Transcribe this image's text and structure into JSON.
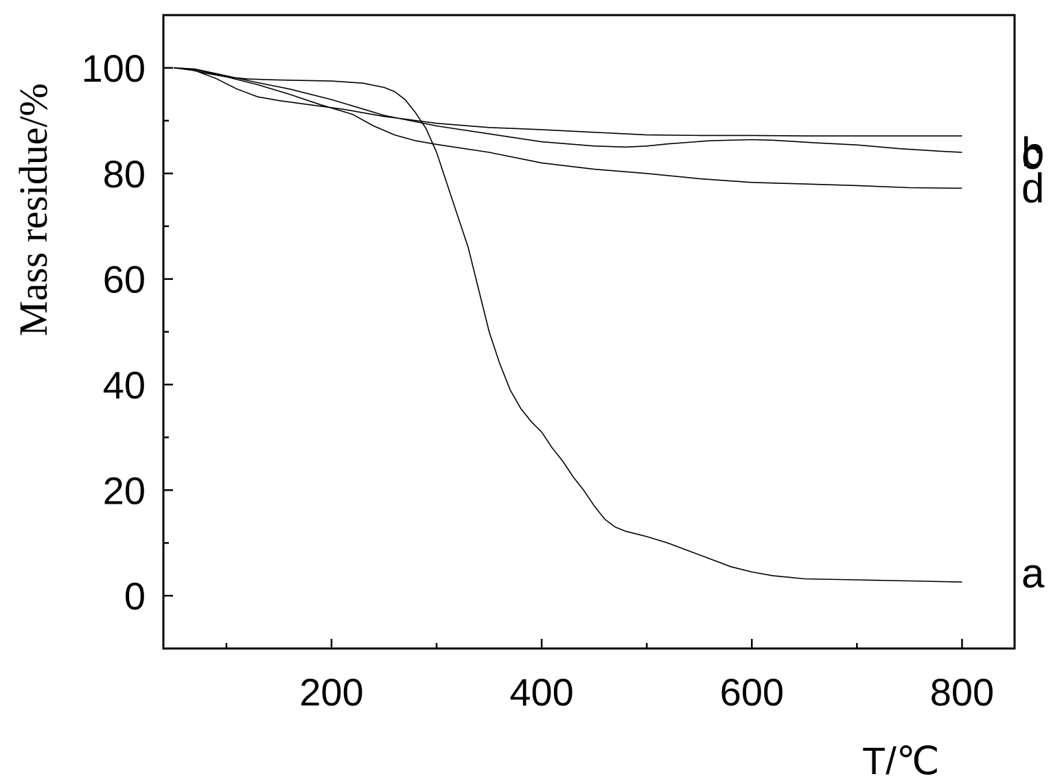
{
  "chart_data": {
    "type": "line",
    "xlabel": "T/℃",
    "ylabel": "Mass residue/%",
    "xlim": [
      40,
      850
    ],
    "ylim": [
      -10,
      110
    ],
    "x_ticks": [
      200,
      400,
      600,
      800
    ],
    "x_minor_ticks": [
      100,
      300,
      500,
      700
    ],
    "y_ticks": [
      0,
      20,
      40,
      60,
      80,
      100
    ],
    "y_minor_ticks": [
      10,
      30,
      50,
      70,
      90
    ],
    "grid": false,
    "line_color": "#000000",
    "series": [
      {
        "name": "a",
        "points": [
          [
            50,
            100
          ],
          [
            60,
            99.9
          ],
          [
            80,
            99
          ],
          [
            100,
            98.3
          ],
          [
            120,
            97.9
          ],
          [
            150,
            97.7
          ],
          [
            200,
            97.5
          ],
          [
            230,
            97.1
          ],
          [
            250,
            96.3
          ],
          [
            260,
            95.5
          ],
          [
            270,
            94
          ],
          [
            280,
            91.5
          ],
          [
            290,
            88.5
          ],
          [
            300,
            84
          ],
          [
            310,
            78
          ],
          [
            320,
            72
          ],
          [
            330,
            66
          ],
          [
            340,
            58
          ],
          [
            350,
            50
          ],
          [
            360,
            44
          ],
          [
            370,
            39
          ],
          [
            380,
            35.5
          ],
          [
            390,
            33
          ],
          [
            400,
            31
          ],
          [
            410,
            28
          ],
          [
            420,
            25.5
          ],
          [
            430,
            22.5
          ],
          [
            440,
            20
          ],
          [
            450,
            17
          ],
          [
            460,
            14.5
          ],
          [
            470,
            13
          ],
          [
            480,
            12.2
          ],
          [
            500,
            11.2
          ],
          [
            520,
            10
          ],
          [
            540,
            8.5
          ],
          [
            560,
            7
          ],
          [
            580,
            5.5
          ],
          [
            600,
            4.5
          ],
          [
            620,
            3.8
          ],
          [
            650,
            3.2
          ],
          [
            700,
            3
          ],
          [
            750,
            2.8
          ],
          [
            800,
            2.6
          ]
        ]
      },
      {
        "name": "b",
        "points": [
          [
            50,
            100
          ],
          [
            70,
            99.8
          ],
          [
            100,
            98.5
          ],
          [
            130,
            97.2
          ],
          [
            160,
            96
          ],
          [
            200,
            94
          ],
          [
            250,
            91
          ],
          [
            300,
            89
          ],
          [
            350,
            87.5
          ],
          [
            400,
            86
          ],
          [
            450,
            85.2
          ],
          [
            480,
            85
          ],
          [
            500,
            85.2
          ],
          [
            520,
            85.6
          ],
          [
            560,
            86.2
          ],
          [
            600,
            86.4
          ],
          [
            620,
            86.3
          ],
          [
            660,
            85.8
          ],
          [
            700,
            85.4
          ],
          [
            740,
            84.7
          ],
          [
            780,
            84.2
          ],
          [
            800,
            84
          ]
        ]
      },
      {
        "name": "c",
        "points": [
          [
            50,
            100
          ],
          [
            70,
            99.5
          ],
          [
            90,
            98
          ],
          [
            110,
            96
          ],
          [
            130,
            94.5
          ],
          [
            150,
            93.8
          ],
          [
            180,
            93
          ],
          [
            210,
            92.2
          ],
          [
            230,
            91.5
          ],
          [
            250,
            90.8
          ],
          [
            270,
            90.3
          ],
          [
            300,
            89.5
          ],
          [
            350,
            88.7
          ],
          [
            400,
            88.3
          ],
          [
            450,
            87.8
          ],
          [
            500,
            87.3
          ],
          [
            550,
            87.2
          ],
          [
            600,
            87.2
          ],
          [
            650,
            87.1
          ],
          [
            700,
            87.1
          ],
          [
            800,
            87.1
          ]
        ]
      },
      {
        "name": "d",
        "points": [
          [
            50,
            100
          ],
          [
            70,
            99.7
          ],
          [
            100,
            98.3
          ],
          [
            130,
            96.8
          ],
          [
            160,
            95
          ],
          [
            190,
            93
          ],
          [
            220,
            91.2
          ],
          [
            240,
            89
          ],
          [
            260,
            87.3
          ],
          [
            280,
            86.2
          ],
          [
            300,
            85.5
          ],
          [
            350,
            84
          ],
          [
            400,
            82
          ],
          [
            450,
            80.8
          ],
          [
            500,
            80
          ],
          [
            550,
            79
          ],
          [
            600,
            78.3
          ],
          [
            650,
            78
          ],
          [
            700,
            77.7
          ],
          [
            750,
            77.3
          ],
          [
            800,
            77.2
          ]
        ]
      }
    ],
    "series_labels": [
      "a",
      "b",
      "c",
      "d"
    ]
  }
}
